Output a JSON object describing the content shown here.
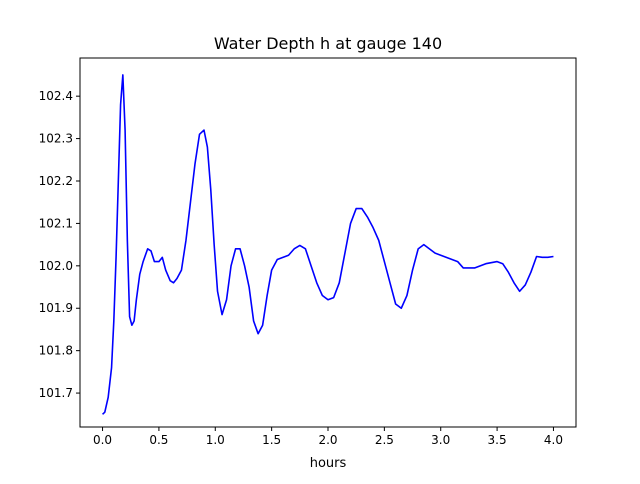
{
  "chart_data": {
    "type": "line",
    "title": "Water Depth h at gauge 140",
    "xlabel": "hours",
    "ylabel": "",
    "xlim": [
      -0.2,
      4.2
    ],
    "ylim": [
      101.62,
      102.49
    ],
    "x_ticks": [
      0.0,
      0.5,
      1.0,
      1.5,
      2.0,
      2.5,
      3.0,
      3.5,
      4.0
    ],
    "x_tick_labels": [
      "0.0",
      "0.5",
      "1.0",
      "1.5",
      "2.0",
      "2.5",
      "3.0",
      "3.5",
      "4.0"
    ],
    "y_ticks": [
      101.7,
      101.8,
      101.9,
      102.0,
      102.1,
      102.2,
      102.3,
      102.4
    ],
    "y_tick_labels": [
      "101.7",
      "101.8",
      "101.9",
      "102.0",
      "102.1",
      "102.2",
      "102.3",
      "102.4"
    ],
    "grid": false,
    "legend": "none",
    "line_color": "#0000ff",
    "series": [
      {
        "x": [
          0.0,
          0.02,
          0.05,
          0.08,
          0.1,
          0.12,
          0.14,
          0.16,
          0.18,
          0.2,
          0.22,
          0.24,
          0.26,
          0.28,
          0.3,
          0.33,
          0.36,
          0.4,
          0.43,
          0.46,
          0.5,
          0.53,
          0.56,
          0.6,
          0.63,
          0.66,
          0.7,
          0.74,
          0.78,
          0.82,
          0.86,
          0.9,
          0.93,
          0.96,
          0.99,
          1.02,
          1.06,
          1.1,
          1.14,
          1.18,
          1.22,
          1.26,
          1.3,
          1.34,
          1.38,
          1.42,
          1.46,
          1.5,
          1.55,
          1.6,
          1.65,
          1.7,
          1.75,
          1.8,
          1.85,
          1.9,
          1.95,
          2.0,
          2.05,
          2.1,
          2.15,
          2.2,
          2.25,
          2.3,
          2.35,
          2.4,
          2.45,
          2.5,
          2.55,
          2.6,
          2.65,
          2.7,
          2.75,
          2.8,
          2.85,
          2.9,
          2.95,
          3.0,
          3.05,
          3.1,
          3.15,
          3.2,
          3.3,
          3.4,
          3.5,
          3.55,
          3.6,
          3.65,
          3.7,
          3.75,
          3.8,
          3.85,
          3.9,
          3.95,
          4.0
        ],
        "y": [
          101.65,
          101.655,
          101.69,
          101.76,
          101.87,
          102.02,
          102.2,
          102.38,
          102.45,
          102.32,
          102.06,
          101.88,
          101.86,
          101.87,
          101.92,
          101.98,
          102.01,
          102.04,
          102.035,
          102.01,
          102.01,
          102.02,
          101.99,
          101.965,
          101.96,
          101.97,
          101.99,
          102.06,
          102.15,
          102.24,
          102.31,
          102.32,
          102.28,
          102.18,
          102.05,
          101.94,
          101.885,
          101.92,
          102.0,
          102.04,
          102.04,
          102.0,
          101.95,
          101.87,
          101.84,
          101.86,
          101.93,
          101.99,
          102.015,
          102.02,
          102.025,
          102.04,
          102.048,
          102.04,
          102.0,
          101.96,
          101.93,
          101.92,
          101.925,
          101.96,
          102.03,
          102.1,
          102.135,
          102.135,
          102.115,
          102.09,
          102.06,
          102.01,
          101.96,
          101.91,
          101.9,
          101.93,
          101.99,
          102.04,
          102.05,
          102.04,
          102.03,
          102.025,
          102.02,
          102.015,
          102.01,
          101.995,
          101.995,
          102.005,
          102.01,
          102.005,
          101.985,
          101.96,
          101.94,
          101.955,
          101.985,
          102.022,
          102.02,
          102.02,
          102.022
        ],
        "name": ""
      }
    ]
  }
}
